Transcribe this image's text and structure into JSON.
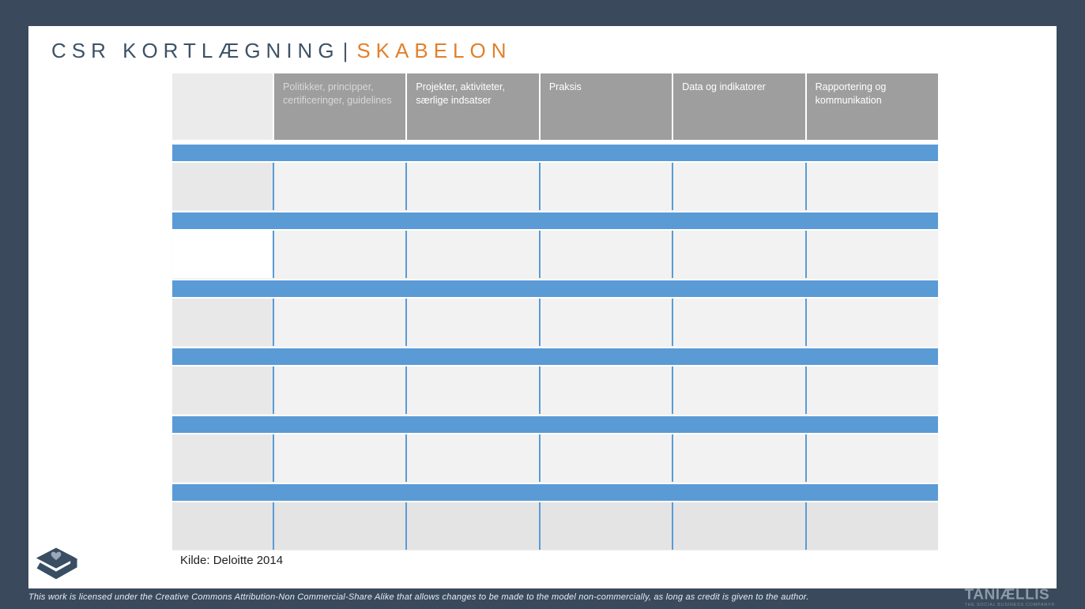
{
  "colors": {
    "frame_navy": "#3a4a5c",
    "accent_blue": "#5b9bd5",
    "accent_orange": "#e0812d",
    "header_gray": "#9e9e9e",
    "title_navy": "#3e5266"
  },
  "title": {
    "primary": "CSR KORTLÆGNING",
    "separator": "|",
    "secondary": "SKABELON"
  },
  "table": {
    "headers": [
      {
        "label": ""
      },
      {
        "label": "Politikker, principper, certificeringer, guidelines"
      },
      {
        "label": "Projekter, aktiviteter, særlige indsatser"
      },
      {
        "label": "Praksis"
      },
      {
        "label": "Data og indikatorer"
      },
      {
        "label": "Rapportering og kommunikation"
      }
    ],
    "rows": [
      {
        "variant": "default",
        "cells": [
          "",
          "",
          "",
          "",
          "",
          ""
        ]
      },
      {
        "variant": "white-first",
        "cells": [
          "",
          "",
          "",
          "",
          "",
          ""
        ]
      },
      {
        "variant": "default",
        "cells": [
          "",
          "",
          "",
          "",
          "",
          ""
        ]
      },
      {
        "variant": "default",
        "cells": [
          "",
          "",
          "",
          "",
          "",
          ""
        ]
      },
      {
        "variant": "default",
        "cells": [
          "",
          "",
          "",
          "",
          "",
          ""
        ]
      },
      {
        "variant": "solid",
        "cells": [
          "",
          "",
          "",
          "",
          "",
          ""
        ]
      }
    ]
  },
  "source_note": "Kilde: Deloitte 2014",
  "footer": {
    "license": "This work is licensed under the Creative Commons Attribution-Non Commercial-Share Alike that allows changes to be made to the model non-commercially, as long as credit is given to the author.",
    "brand": "TANIÆLLIS",
    "brand_tagline": "THE SOCIAL BUSINESS COMPANY®"
  },
  "icons": {
    "brand_mark": "graduation-cap-heart-logo"
  }
}
